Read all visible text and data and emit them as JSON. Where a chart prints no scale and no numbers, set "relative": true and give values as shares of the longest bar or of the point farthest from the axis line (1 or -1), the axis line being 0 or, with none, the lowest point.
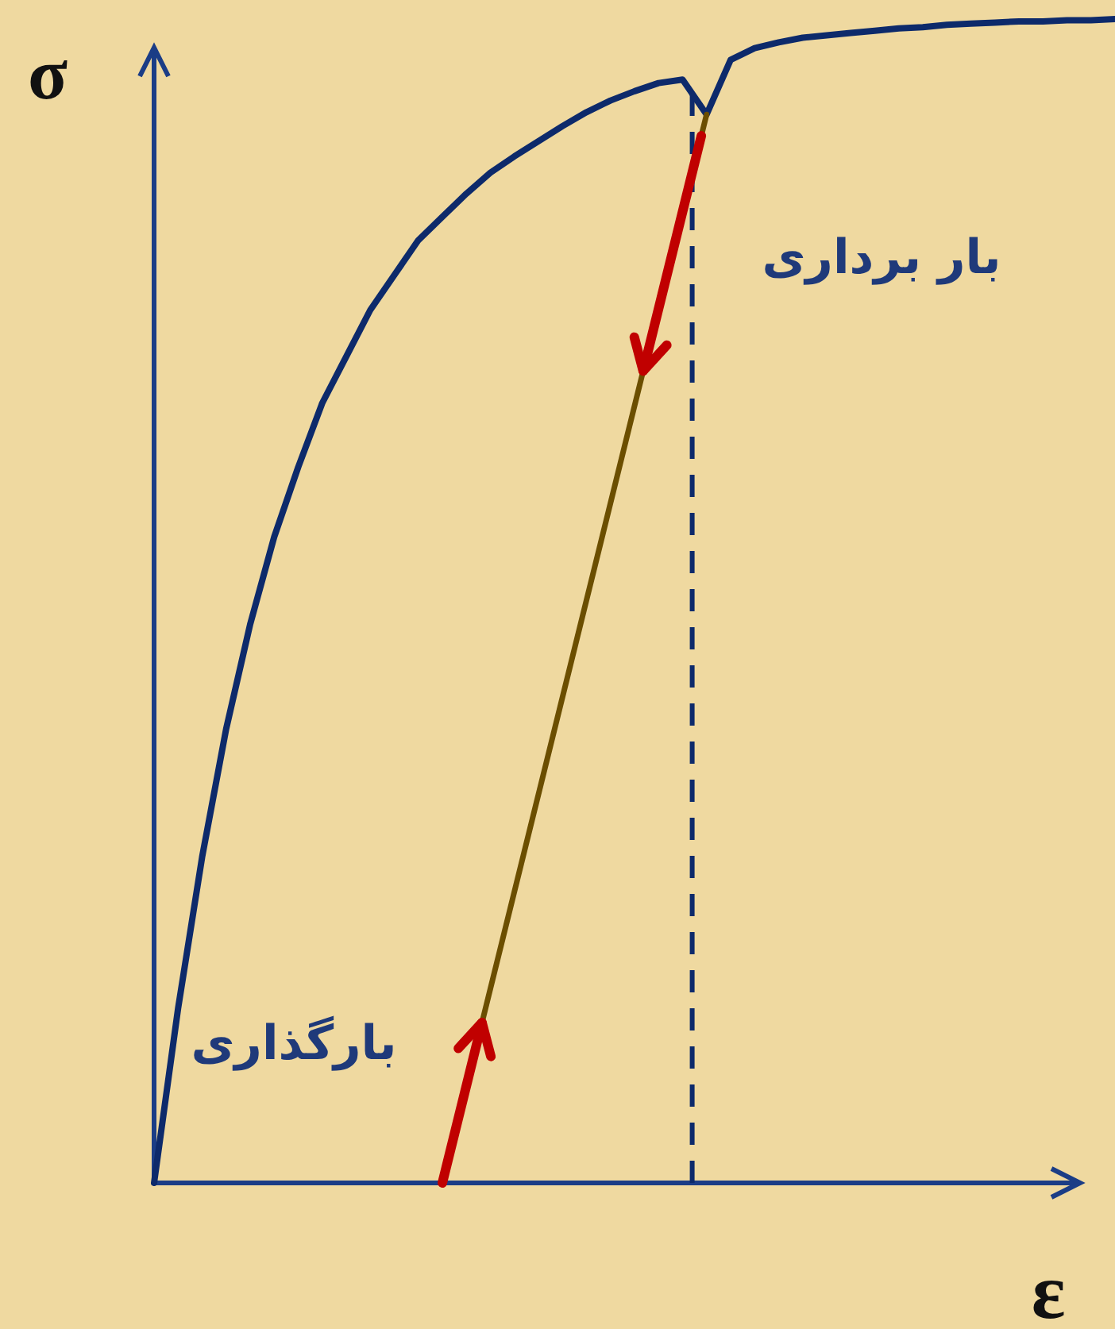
{
  "chart_data": {
    "type": "line",
    "relative": true,
    "xlabel": "ε",
    "ylabel": "σ",
    "legend": false,
    "line_style": "solid",
    "marker": "none",
    "annotations": [
      "بار برداری",
      "بارگذاری"
    ],
    "categories": [
      null,
      null,
      null,
      null,
      null,
      null,
      null,
      null,
      null,
      null,
      null,
      null,
      null,
      null,
      null,
      null,
      null,
      null,
      null,
      null,
      null,
      null,
      null,
      null,
      null,
      null,
      null,
      null,
      null,
      null,
      null,
      null,
      null,
      null,
      null,
      null,
      null,
      null,
      null,
      null,
      null
    ],
    "ref_lines": [
      {
        "axis": "x",
        "color": "#0d2a6b",
        "line_style": "dashed"
      }
    ],
    "series": [
      {
        "color": "#0d2a6b",
        "values": [
          0,
          0.15,
          0.28,
          0.39,
          0.48,
          0.555,
          0.615,
          0.67,
          0.71,
          0.75,
          0.78,
          0.81,
          0.83,
          0.85,
          0.868,
          0.882,
          0.895,
          0.908,
          0.92,
          0.93,
          0.938,
          0.945,
          0.948,
          0.918,
          0.965,
          0.975,
          0.98,
          0.984,
          0.986,
          0.988,
          0.99,
          0.992,
          0.993,
          0.995,
          0.996,
          0.997,
          0.998,
          0.998,
          0.999,
          0.999,
          1
        ]
      },
      {
        "color": "#6b4e00",
        "values": [
          null,
          null,
          null,
          null,
          null,
          null,
          null,
          null,
          null,
          null,
          null,
          null,
          0,
          null,
          null,
          null,
          null,
          null,
          null,
          null,
          null,
          null,
          null,
          0.918,
          null,
          null,
          null,
          null,
          null,
          null,
          null,
          null,
          null,
          null,
          null,
          null,
          null,
          null,
          null,
          null,
          null
        ]
      }
    ]
  }
}
